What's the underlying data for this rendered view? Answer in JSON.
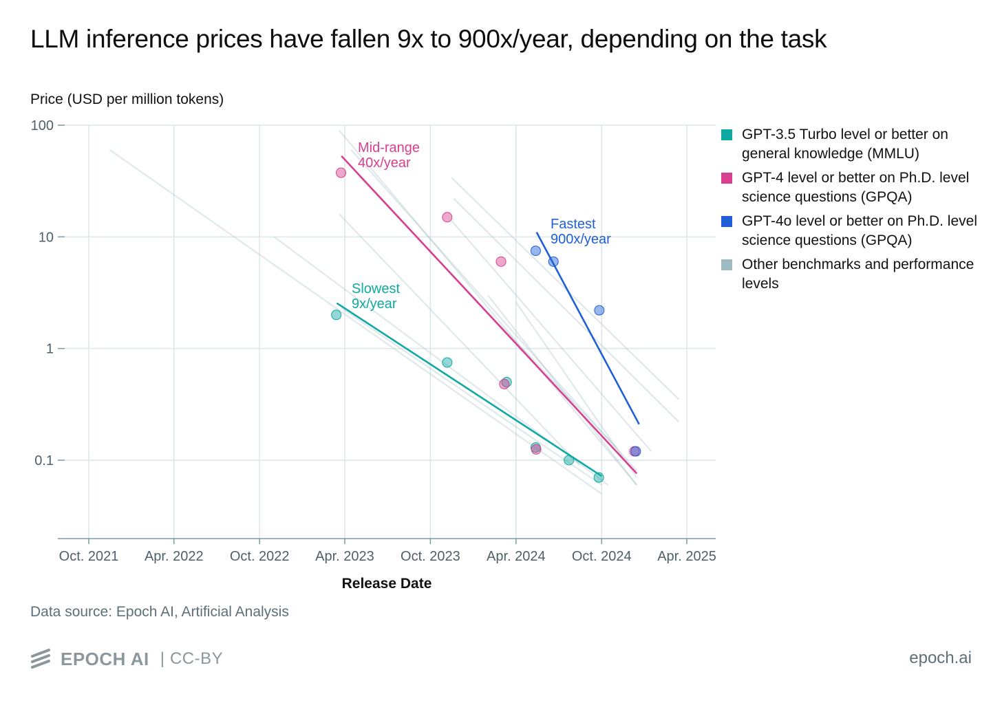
{
  "title": "LLM inference prices have fallen 9x to 900x/year, depending on the task",
  "chart_data": {
    "type": "scatter",
    "ylabel": "Price (USD per million tokens)",
    "xlabel": "Release Date",
    "y_scale": "log",
    "ylim": [
      0.02,
      100
    ],
    "y_ticks": [
      {
        "value": 100,
        "label": "100"
      },
      {
        "value": 10,
        "label": "10"
      },
      {
        "value": 1,
        "label": "1"
      },
      {
        "value": 0.1,
        "label": "0.1"
      }
    ],
    "xlim": [
      "2021-08-15",
      "2025-05-15"
    ],
    "x_ticks": [
      {
        "date": "2021-10-01",
        "label": "Oct. 2021"
      },
      {
        "date": "2022-04-01",
        "label": "Apr. 2022"
      },
      {
        "date": "2022-10-01",
        "label": "Oct. 2022"
      },
      {
        "date": "2023-04-01",
        "label": "Apr. 2023"
      },
      {
        "date": "2023-10-01",
        "label": "Oct. 2023"
      },
      {
        "date": "2024-04-01",
        "label": "Apr. 2024"
      },
      {
        "date": "2024-10-01",
        "label": "Oct. 2024"
      },
      {
        "date": "2025-04-01",
        "label": "Apr. 2025"
      }
    ],
    "series": [
      {
        "name": "GPT-3.5 Turbo level or better on general knowledge (MMLU)",
        "color": "#0fa9a1",
        "points": [
          {
            "date": "2023-03-14",
            "price": 2.0
          },
          {
            "date": "2023-11-06",
            "price": 0.75
          },
          {
            "date": "2024-03-12",
            "price": 0.5
          },
          {
            "date": "2024-05-13",
            "price": 0.13
          },
          {
            "date": "2024-07-23",
            "price": 0.1
          },
          {
            "date": "2024-09-25",
            "price": 0.07
          }
        ],
        "trend": {
          "from": {
            "date": "2023-03-15",
            "price": 2.55
          },
          "to": {
            "date": "2024-10-01",
            "price": 0.072
          }
        },
        "trend_label": [
          "Slowest",
          "9x/year"
        ]
      },
      {
        "name": "GPT-4 level or better on Ph.D. level science questions (GPQA)",
        "color": "#d8408f",
        "points": [
          {
            "date": "2023-03-24",
            "price": 37.5
          },
          {
            "date": "2023-11-06",
            "price": 15.0
          },
          {
            "date": "2024-02-29",
            "price": 6.0
          },
          {
            "date": "2024-03-07",
            "price": 0.48
          },
          {
            "date": "2024-05-14",
            "price": 0.125
          },
          {
            "date": "2024-12-10",
            "price": 0.12
          }
        ],
        "trend": {
          "from": {
            "date": "2023-03-25",
            "price": 53.0
          },
          "to": {
            "date": "2024-12-15",
            "price": 0.076
          }
        },
        "trend_label": [
          "Mid-range",
          "40x/year"
        ]
      },
      {
        "name": "GPT-4o level or better on Ph.D. level science questions (GPQA)",
        "color": "#1f5fd6",
        "points": [
          {
            "date": "2024-05-13",
            "price": 7.5
          },
          {
            "date": "2024-06-20",
            "price": 6.0
          },
          {
            "date": "2024-09-26",
            "price": 2.2
          },
          {
            "date": "2024-12-13",
            "price": 0.12
          }
        ],
        "trend": {
          "from": {
            "date": "2024-05-15",
            "price": 11.0
          },
          "to": {
            "date": "2024-12-20",
            "price": 0.21
          }
        },
        "trend_label": [
          "Fastest",
          "900x/year"
        ]
      },
      {
        "name": "Other benchmarks and performance levels",
        "color": "#9dbcc1",
        "trends": [
          {
            "from": {
              "date": "2021-11-15",
              "price": 60
            },
            "to": {
              "date": "2024-10-01",
              "price": 0.05
            }
          },
          {
            "from": {
              "date": "2022-11-01",
              "price": 10
            },
            "to": {
              "date": "2024-10-15",
              "price": 0.06
            }
          },
          {
            "from": {
              "date": "2023-03-20",
              "price": 16
            },
            "to": {
              "date": "2024-08-15",
              "price": 0.09
            }
          },
          {
            "from": {
              "date": "2023-03-20",
              "price": 90
            },
            "to": {
              "date": "2024-12-15",
              "price": 0.06
            }
          },
          {
            "from": {
              "date": "2023-04-15",
              "price": 60
            },
            "to": {
              "date": "2024-12-15",
              "price": 0.08
            }
          },
          {
            "from": {
              "date": "2023-05-01",
              "price": 35
            },
            "to": {
              "date": "2024-11-01",
              "price": 0.13
            }
          },
          {
            "from": {
              "date": "2023-11-15",
              "price": 34
            },
            "to": {
              "date": "2025-03-15",
              "price": 0.35
            }
          },
          {
            "from": {
              "date": "2023-11-20",
              "price": 22
            },
            "to": {
              "date": "2025-03-15",
              "price": 0.22
            }
          },
          {
            "from": {
              "date": "2023-11-15",
              "price": 14
            },
            "to": {
              "date": "2025-01-15",
              "price": 0.12
            }
          },
          {
            "from": {
              "date": "2024-02-01",
              "price": 3.0
            },
            "to": {
              "date": "2024-12-15",
              "price": 0.06
            }
          },
          {
            "from": {
              "date": "2024-04-01",
              "price": 2.6
            },
            "to": {
              "date": "2024-12-15",
              "price": 0.07
            }
          },
          {
            "from": {
              "date": "2023-03-25",
              "price": 2.3
            },
            "to": {
              "date": "2024-10-01",
              "price": 0.06
            }
          }
        ]
      }
    ]
  },
  "source": "Data source: Epoch AI, Artificial Analysis",
  "footer": {
    "brand": "EPOCH AI",
    "separator": "|",
    "license": "CC-BY",
    "site": "epoch.ai"
  },
  "colors": {
    "grid": "#dde6e8",
    "axis": "#7f9aa2",
    "tick_text": "#4f5f66"
  }
}
